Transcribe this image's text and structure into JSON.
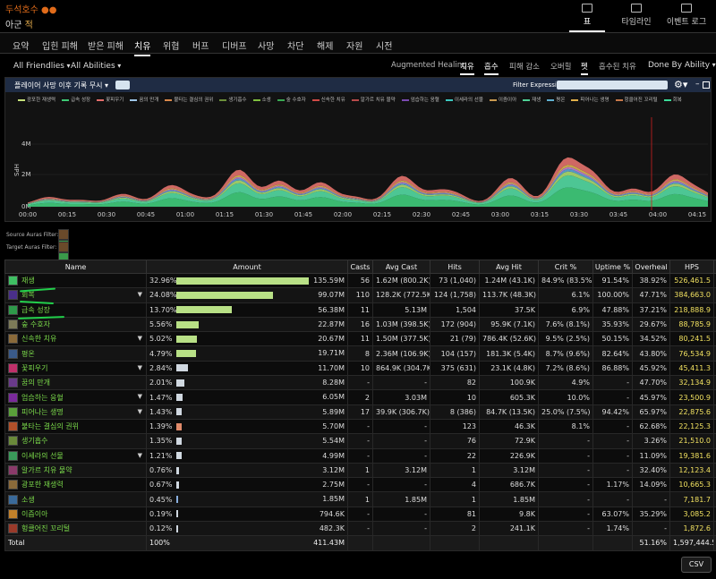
{
  "header": {
    "title": "두석호수 ●●",
    "subtitle_ko": "아군",
    "subtitle_en": "적",
    "big_tabs": [
      {
        "label": "표",
        "active": true
      },
      {
        "label": "타임라인",
        "active": false
      },
      {
        "label": "이벤트 로그",
        "active": false
      }
    ]
  },
  "nav": [
    "요약",
    "입힌 피해",
    "받은 피해",
    "치유",
    "위협",
    "버프",
    "디버프",
    "사망",
    "차단",
    "해제",
    "자원",
    "시전"
  ],
  "nav_active": "치유",
  "filters": {
    "friendlies": "All Friendlies",
    "abilities": "All Abilities",
    "metric_tabs": [
      "Augmented Healing",
      "치유",
      "흡수",
      "피해 감소",
      "오버힐",
      "펫",
      "흡수된 치유"
    ],
    "metric_active": [
      "치유",
      "흡수",
      "펫"
    ],
    "done_by": "Done By Ability"
  },
  "graph": {
    "title": "플레이어 사망 이후 기록 무시",
    "filter_label": "Filter Expression:",
    "y_label": "HPS",
    "legend": [
      {
        "name": "광포한 재생력",
        "color": "#c5e07a"
      },
      {
        "name": "급속 성장",
        "color": "#3dc874"
      },
      {
        "name": "꽃피우기",
        "color": "#e26d6a"
      },
      {
        "name": "꿈의 만개",
        "color": "#9ec6e8"
      },
      {
        "name": "불타는 결심의 권위",
        "color": "#d9884a"
      },
      {
        "name": "생기흡수",
        "color": "#6c8f3a"
      },
      {
        "name": "소생",
        "color": "#7fbf3f"
      },
      {
        "name": "숲 수호자",
        "color": "#3aa852"
      },
      {
        "name": "신속한 치유",
        "color": "#d04a46"
      },
      {
        "name": "알가르 치유 물약",
        "color": "#b84a4a"
      },
      {
        "name": "엄습하는 응혈",
        "color": "#7a4ab0"
      },
      {
        "name": "이세라의 선물",
        "color": "#3cc8c0"
      },
      {
        "name": "이즘이아",
        "color": "#c99a50"
      },
      {
        "name": "재생",
        "color": "#4fd196"
      },
      {
        "name": "평온",
        "color": "#60b0d0"
      },
      {
        "name": "피어나는 생명",
        "color": "#e2b04a"
      },
      {
        "name": "헝클어진 꼬리털",
        "color": "#c7784a"
      },
      {
        "name": "회복",
        "color": "#3bdc9a"
      }
    ],
    "y_ticks": [
      "4M",
      "2M",
      "0M"
    ],
    "x_ticks": [
      "00:00",
      "00:15",
      "00:30",
      "00:45",
      "01:00",
      "01:15",
      "01:30",
      "01:45",
      "02:00",
      "02:15",
      "02:30",
      "02:45",
      "03:00",
      "03:15",
      "03:30",
      "03:45",
      "04:00",
      "04:15"
    ]
  },
  "auras": {
    "source_label": "Source Auras Filter:",
    "target_label": "Target Auras Filter:"
  },
  "table": {
    "headers": [
      "Name",
      "Amount",
      "Casts",
      "Avg Cast",
      "Hits",
      "Avg Hit",
      "Crit %",
      "Uptime %",
      "Overheal",
      "HPS",
      "+"
    ],
    "rows": [
      {
        "name": "재생",
        "pct": "32.96%",
        "amount": "135.59M",
        "casts": "56",
        "avg_cast": "1.62M (800.2K)",
        "hits": "73 (1,040)",
        "avg_hit": "1.24M (43.1K)",
        "crit": "84.9% (83.5%)",
        "uptime": "91.54%",
        "overheal": "38.92%",
        "hps": "526,461.5",
        "bar": 1.0,
        "color": "#3fbf63",
        "chev": false
      },
      {
        "name": "회복",
        "pct": "24.08%",
        "amount": "99.07M",
        "casts": "110",
        "avg_cast": "128.2K (772.5K)",
        "hits": "124 (1,758)",
        "avg_hit": "113.7K (48.3K)",
        "crit": "6.1%",
        "uptime": "100.00%",
        "overheal": "47.71%",
        "hps": "384,663.0",
        "bar": 0.73,
        "color": "#4a2f8a",
        "chev": true
      },
      {
        "name": "급속 성장",
        "pct": "13.70%",
        "amount": "56.38M",
        "casts": "11",
        "avg_cast": "5.13M",
        "hits": "1,504",
        "avg_hit": "37.5K",
        "crit": "6.9%",
        "uptime": "47.88%",
        "overheal": "37.21%",
        "hps": "218,888.9",
        "bar": 0.416,
        "color": "#2e9a4a",
        "chev": false
      },
      {
        "name": "숲 수호자",
        "pct": "5.56%",
        "amount": "22.87M",
        "casts": "16",
        "avg_cast": "1.03M (398.5K)",
        "hits": "172 (904)",
        "avg_hit": "95.9K (7.1K)",
        "crit": "7.6% (8.1%)",
        "uptime": "35.93%",
        "overheal": "29.67%",
        "hps": "88,785.9",
        "bar": 0.169,
        "color": "#7c7a58",
        "chev": false
      },
      {
        "name": "신속한 치유",
        "pct": "5.02%",
        "amount": "20.67M",
        "casts": "11",
        "avg_cast": "1.50M (377.5K)",
        "hits": "21 (79)",
        "avg_hit": "786.4K (52.6K)",
        "crit": "9.5% (2.5%)",
        "uptime": "50.15%",
        "overheal": "34.52%",
        "hps": "80,241.5",
        "bar": 0.152,
        "color": "#8a6a3a",
        "chev": true
      },
      {
        "name": "평온",
        "pct": "4.79%",
        "amount": "19.71M",
        "casts": "8",
        "avg_cast": "2.36M (106.9K)",
        "hits": "104 (157)",
        "avg_hit": "181.3K (5.4K)",
        "crit": "8.7% (9.6%)",
        "uptime": "82.64%",
        "overheal": "43.80%",
        "hps": "76,534.9",
        "bar": 0.145,
        "color": "#3a5a8a",
        "chev": false
      },
      {
        "name": "꽃피우기",
        "pct": "2.84%",
        "amount": "11.70M",
        "casts": "10",
        "avg_cast": "864.9K (304.7K)",
        "hits": "375 (631)",
        "avg_hit": "23.1K (4.8K)",
        "crit": "7.2% (8.6%)",
        "uptime": "86.88%",
        "overheal": "45.92%",
        "hps": "45,411.3",
        "bar": 0.086,
        "color": "#c0306a",
        "chev": true
      },
      {
        "name": "꿈의 만개",
        "pct": "2.01%",
        "amount": "8.28M",
        "casts": "-",
        "avg_cast": "-",
        "hits": "82",
        "avg_hit": "100.9K",
        "crit": "4.9%",
        "uptime": "-",
        "overheal": "47.70%",
        "hps": "32,134.9",
        "bar": 0.061,
        "color": "#6a3a8a",
        "chev": false
      },
      {
        "name": "엄습하는 응혈",
        "pct": "1.47%",
        "amount": "6.05M",
        "casts": "2",
        "avg_cast": "3.03M",
        "hits": "10",
        "avg_hit": "605.3K",
        "crit": "10.0%",
        "uptime": "-",
        "overheal": "45.97%",
        "hps": "23,500.9",
        "bar": 0.045,
        "color": "#7a2a9a",
        "chev": true
      },
      {
        "name": "피어나는 생명",
        "pct": "1.43%",
        "amount": "5.89M",
        "casts": "17",
        "avg_cast": "39.9K (306.7K)",
        "hits": "8 (386)",
        "avg_hit": "84.7K (13.5K)",
        "crit": "25.0% (7.5%)",
        "uptime": "94.42%",
        "overheal": "65.97%",
        "hps": "22,875.6",
        "bar": 0.043,
        "color": "#5aa03a",
        "chev": true
      },
      {
        "name": "불타는 결심의 권위",
        "pct": "1.39%",
        "amount": "5.70M",
        "casts": "-",
        "avg_cast": "-",
        "hits": "123",
        "avg_hit": "46.3K",
        "crit": "8.1%",
        "uptime": "-",
        "overheal": "62.68%",
        "hps": "22,125.3",
        "bar": 0.042,
        "color": "#b0502a",
        "chev": false
      },
      {
        "name": "생기흡수",
        "pct": "1.35%",
        "amount": "5.54M",
        "casts": "-",
        "avg_cast": "-",
        "hits": "76",
        "avg_hit": "72.9K",
        "crit": "-",
        "uptime": "-",
        "overheal": "3.26%",
        "hps": "21,510.0",
        "bar": 0.041,
        "color": "#6a8a3a",
        "chev": false
      },
      {
        "name": "이세라의 선물",
        "pct": "1.21%",
        "amount": "4.99M",
        "casts": "-",
        "avg_cast": "-",
        "hits": "22",
        "avg_hit": "226.9K",
        "crit": "-",
        "uptime": "-",
        "overheal": "11.09%",
        "hps": "19,381.6",
        "bar": 0.037,
        "color": "#3a9a5a",
        "chev": true
      },
      {
        "name": "알가르 치유 물약",
        "pct": "0.76%",
        "amount": "3.12M",
        "casts": "1",
        "avg_cast": "3.12M",
        "hits": "1",
        "avg_hit": "3.12M",
        "crit": "-",
        "uptime": "-",
        "overheal": "32.40%",
        "hps": "12,123.4",
        "bar": 0.023,
        "color": "#8a3a6a",
        "chev": false
      },
      {
        "name": "광포한 재생력",
        "pct": "0.67%",
        "amount": "2.75M",
        "casts": "-",
        "avg_cast": "-",
        "hits": "4",
        "avg_hit": "686.7K",
        "crit": "-",
        "uptime": "1.17%",
        "overheal": "14.09%",
        "hps": "10,665.3",
        "bar": 0.02,
        "color": "#8a6a3a",
        "chev": false
      },
      {
        "name": "소생",
        "pct": "0.45%",
        "amount": "1.85M",
        "casts": "1",
        "avg_cast": "1.85M",
        "hits": "1",
        "avg_hit": "1.85M",
        "crit": "-",
        "uptime": "-",
        "overheal": "-",
        "hps": "7,181.7",
        "bar": 0.014,
        "color": "#3a6a9a",
        "chev": false
      },
      {
        "name": "이즘이아",
        "pct": "0.19%",
        "amount": "794.6K",
        "casts": "-",
        "avg_cast": "-",
        "hits": "81",
        "avg_hit": "9.8K",
        "crit": "-",
        "uptime": "63.07%",
        "overheal": "35.29%",
        "hps": "3,085.2",
        "bar": 0.006,
        "color": "#c0802a",
        "chev": false
      },
      {
        "name": "헝클어진 꼬리털",
        "pct": "0.12%",
        "amount": "482.3K",
        "casts": "-",
        "avg_cast": "-",
        "hits": "2",
        "avg_hit": "241.1K",
        "crit": "-",
        "uptime": "1.74%",
        "overheal": "-",
        "hps": "1,872.6",
        "bar": 0.004,
        "color": "#9a3a2a",
        "chev": false
      }
    ],
    "total": {
      "name": "Total",
      "pct": "100%",
      "amount": "411.43M",
      "overheal": "51.16%",
      "hps": "1,597,444.5"
    }
  },
  "csv_label": "CSV"
}
